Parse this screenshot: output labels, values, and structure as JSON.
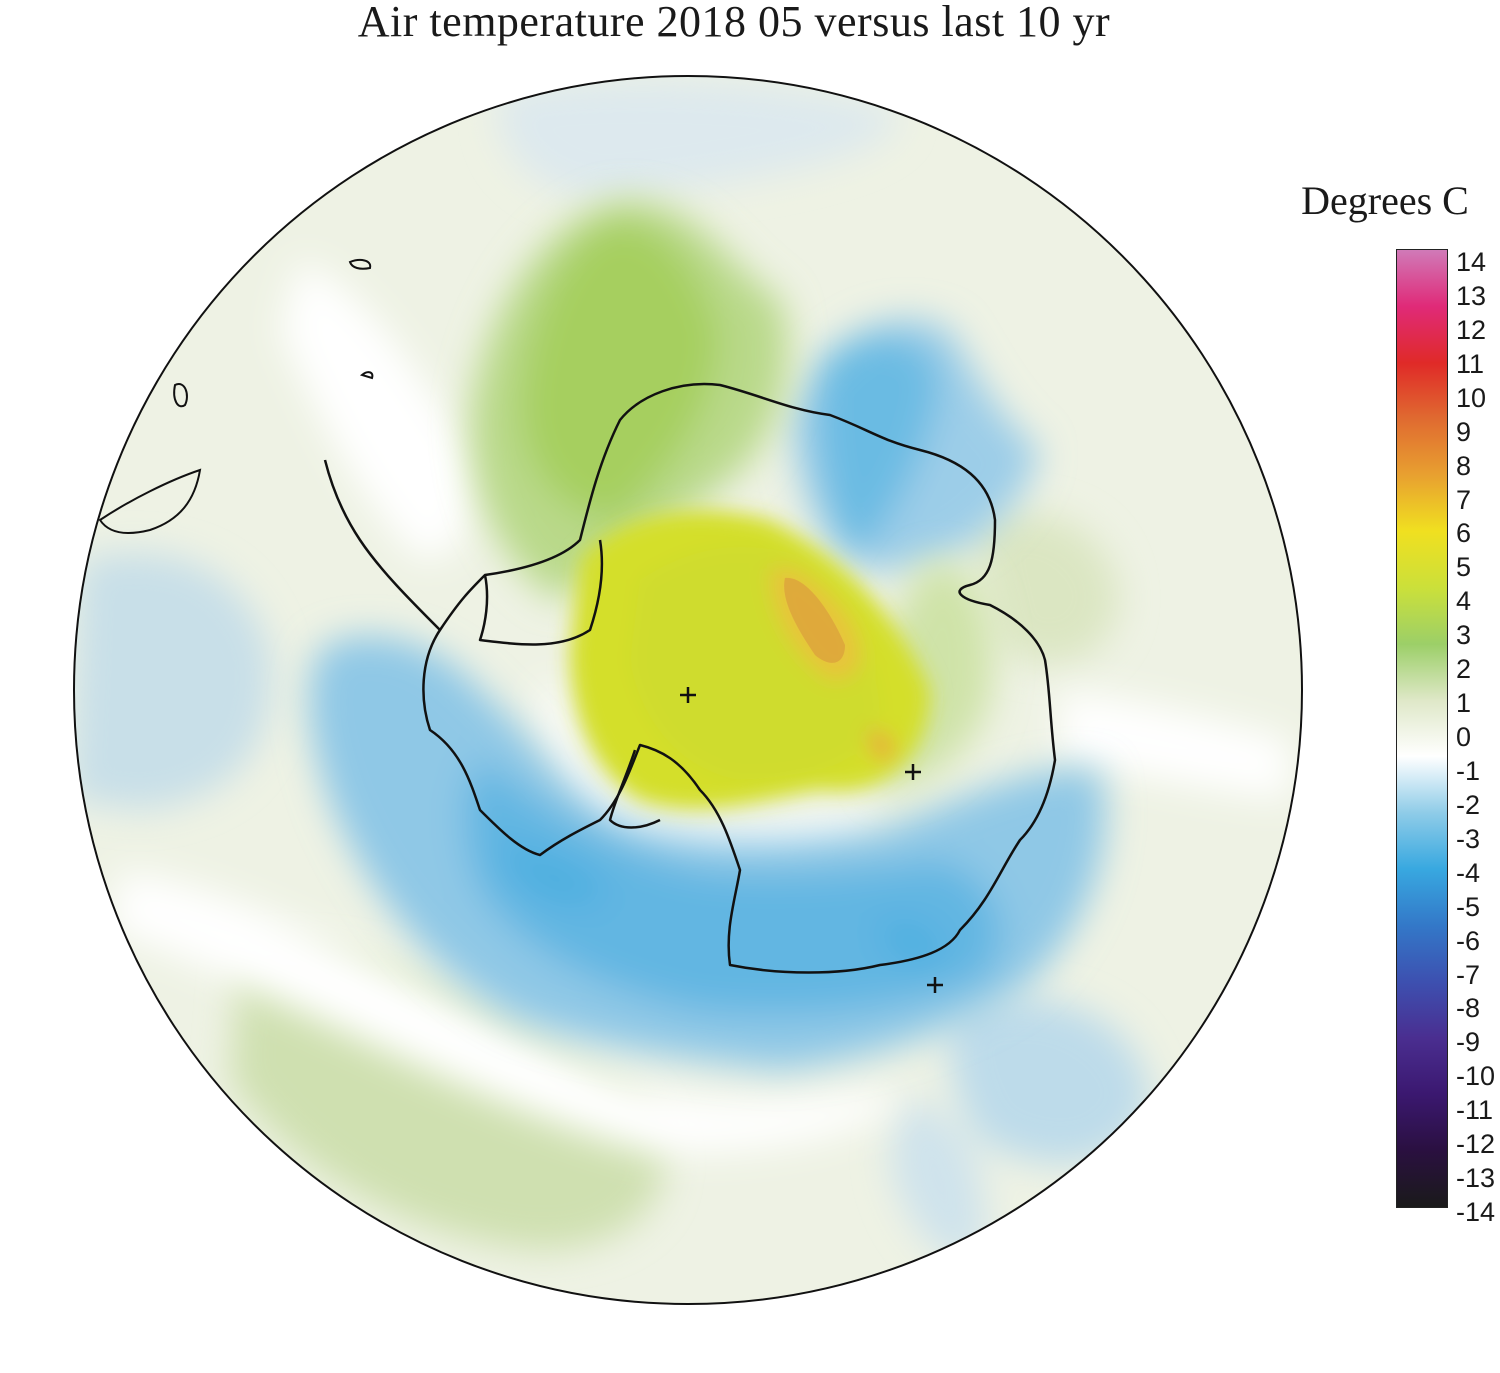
{
  "title": "Air temperature 2018 05 versus last 10 yr",
  "colorbar": {
    "title": "Degrees C",
    "min": -14,
    "max": 14,
    "ticks": [
      "14",
      "13",
      "12",
      "11",
      "10",
      "9",
      "8",
      "7",
      "6",
      "5",
      "4",
      "3",
      "2",
      "1",
      "0",
      "-1",
      "-2",
      "-3",
      "-4",
      "-5",
      "-6",
      "-7",
      "-8",
      "-9",
      "-10",
      "-11",
      "-12",
      "-13",
      "-14"
    ],
    "colors": [
      "#1a1a1a",
      "#2a1040",
      "#3b1870",
      "#4a2e90",
      "#3d50b0",
      "#3378c8",
      "#38a8e0",
      "#8fcce8",
      "#ffffff",
      "#dfe8c8",
      "#9ccf68",
      "#cbe03a",
      "#f0e020",
      "#e8a030",
      "#e06a30",
      "#e02a28",
      "#e02a78",
      "#d07ab8"
    ]
  },
  "legend_colors": {
    "warm_strong": "#e0a03a",
    "warm_mid": "#d4df2a",
    "warm_light": "#a8d060",
    "warm_faint": "#dfe8c8",
    "neutral": "#ffffff",
    "cool_faint": "#d8e8f0",
    "cool_mid": "#8fc8e6",
    "cool_strong": "#4aaee0"
  }
}
